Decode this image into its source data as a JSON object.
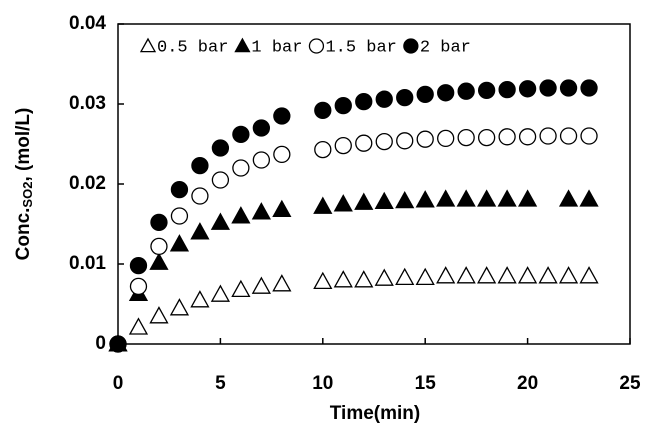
{
  "chart_data": {
    "type": "scatter",
    "xlabel": "Time(min)",
    "ylabel": [
      "Conc.",
      "SO2",
      ", (mol/L)"
    ],
    "x": [
      0,
      1,
      2,
      3,
      4,
      5,
      6,
      7,
      8,
      10,
      11,
      12,
      13,
      14,
      15,
      16,
      17,
      18,
      19,
      20,
      21,
      22,
      23
    ],
    "series": [
      {
        "name": "0.5 bar",
        "color": "#000000",
        "marker": "triangle",
        "filled": false,
        "values": [
          0,
          0.0021,
          0.0035,
          0.0045,
          0.0055,
          0.0062,
          0.0068,
          0.0072,
          0.0075,
          0.0078,
          0.008,
          0.008,
          0.0082,
          0.0083,
          0.0083,
          0.0085,
          0.0085,
          0.0085,
          0.0085,
          0.0085,
          0.0085,
          0.0085,
          0.0085
        ]
      },
      {
        "name": "1 bar",
        "color": "#000000",
        "marker": "triangle",
        "filled": true,
        "values": [
          0,
          0.0063,
          0.0102,
          0.0125,
          0.014,
          0.0152,
          0.016,
          0.0165,
          0.0168,
          0.0172,
          0.0175,
          0.0177,
          0.0178,
          0.0179,
          0.018,
          0.0181,
          0.0181,
          0.0181,
          0.0181,
          0.0181,
          null,
          0.0181,
          0.0181
        ]
      },
      {
        "name": "1.5 bar",
        "color": "#000000",
        "marker": "circle",
        "filled": false,
        "values": [
          0,
          0.0072,
          0.0122,
          0.016,
          0.0185,
          0.0205,
          0.022,
          0.023,
          0.0237,
          0.0243,
          0.0248,
          0.0251,
          0.0253,
          0.0254,
          0.0256,
          0.0257,
          0.0258,
          0.0258,
          0.0259,
          0.0259,
          0.026,
          0.026,
          0.026
        ]
      },
      {
        "name": "2 bar",
        "color": "#000000",
        "marker": "circle",
        "filled": true,
        "values": [
          0,
          0.0098,
          0.0152,
          0.0193,
          0.0223,
          0.0245,
          0.0262,
          0.027,
          0.0285,
          0.0292,
          0.0298,
          0.0303,
          0.0306,
          0.0308,
          0.0312,
          0.0314,
          0.0316,
          0.0317,
          0.0318,
          0.0319,
          0.032,
          0.032,
          0.032
        ]
      }
    ],
    "xlim": [
      0,
      25
    ],
    "xticks": [
      0,
      5,
      10,
      15,
      20,
      25
    ],
    "ylim": [
      0,
      0.04
    ],
    "yticks": [
      0,
      0.01,
      0.02,
      0.03,
      0.04
    ],
    "legend": "top-left"
  }
}
